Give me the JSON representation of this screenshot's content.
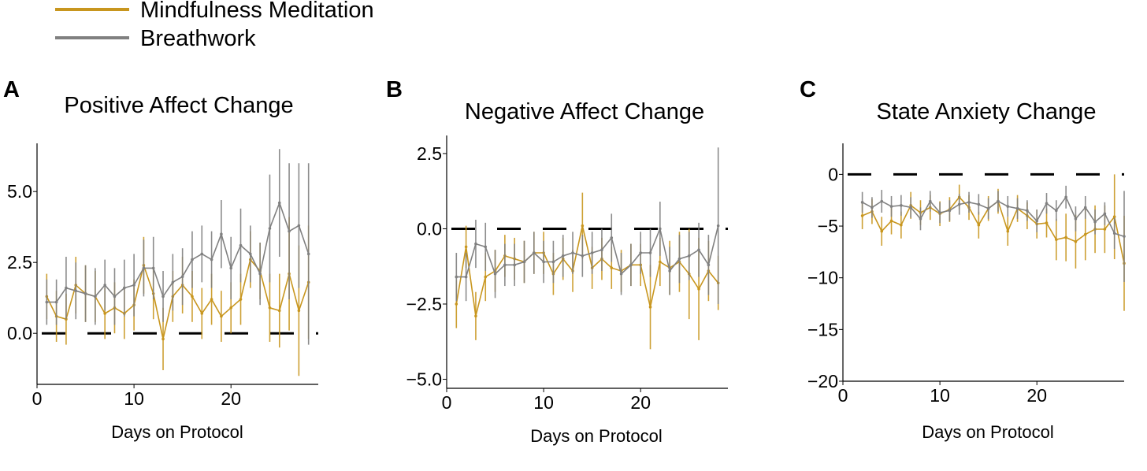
{
  "legend": {
    "entries": [
      {
        "label": "Mindfulness Meditation",
        "color": "#C8961E"
      },
      {
        "label": "Breathwork",
        "color": "#808080"
      }
    ]
  },
  "colors": {
    "mindfulness": "#C8961E",
    "breathwork": "#808080",
    "zero_line": "#000000",
    "axis": "#000000"
  },
  "chart_data": [
    {
      "type": "line",
      "panel": "A",
      "title": "Positive Affect Change",
      "xlabel": "Days on Protocol",
      "ylabel": "",
      "xlim": [
        0,
        29
      ],
      "ylim": [
        -1.8,
        6.7
      ],
      "xticks": [
        0,
        10,
        20
      ],
      "xtick_labels": [
        "0",
        "10",
        "20"
      ],
      "yticks": [
        0,
        2.5,
        5
      ],
      "ytick_labels": [
        "0.0",
        "2.5",
        "5.0"
      ],
      "zero_line": true,
      "grid": false,
      "series": [
        {
          "name": "Mindfulness Meditation",
          "x": [
            1,
            2,
            3,
            4,
            5,
            6,
            7,
            8,
            9,
            10,
            11,
            12,
            13,
            14,
            15,
            16,
            17,
            18,
            19,
            20,
            21,
            22,
            23,
            24,
            25,
            26,
            27,
            28
          ],
          "y": [
            1.3,
            0.6,
            0.5,
            1.7,
            1.4,
            1.3,
            0.7,
            0.9,
            0.7,
            1.0,
            2.4,
            1.4,
            -0.2,
            1.3,
            1.7,
            1.3,
            0.7,
            1.2,
            0.6,
            0.9,
            1.2,
            2.6,
            2.2,
            0.9,
            0.8,
            2.1,
            0.8,
            1.8
          ],
          "err": [
            0.8,
            0.9,
            0.9,
            1.0,
            1.0,
            0.9,
            0.9,
            0.9,
            0.9,
            0.9,
            1.0,
            0.9,
            1.1,
            0.9,
            1.0,
            0.9,
            0.9,
            0.9,
            0.9,
            0.9,
            0.9,
            1.0,
            1.0,
            1.2,
            1.3,
            2.0,
            2.3,
            2.0
          ]
        },
        {
          "name": "Breathwork",
          "x": [
            1,
            2,
            3,
            4,
            5,
            6,
            7,
            8,
            9,
            10,
            11,
            12,
            13,
            14,
            15,
            16,
            17,
            18,
            19,
            20,
            21,
            22,
            23,
            24,
            25,
            26,
            27,
            28
          ],
          "y": [
            1.1,
            1.1,
            1.6,
            1.5,
            1.4,
            1.3,
            1.7,
            1.3,
            1.6,
            1.7,
            2.3,
            2.3,
            1.3,
            1.8,
            2.0,
            2.6,
            2.8,
            2.6,
            3.5,
            2.3,
            3.1,
            2.8,
            2.1,
            3.7,
            4.6,
            3.6,
            3.8,
            2.8
          ],
          "err": [
            0.8,
            0.8,
            1.1,
            1.0,
            1.0,
            1.0,
            0.9,
            1.0,
            1.0,
            1.1,
            1.0,
            1.1,
            0.9,
            1.0,
            1.0,
            1.0,
            1.0,
            1.0,
            1.2,
            1.1,
            1.3,
            1.0,
            1.1,
            1.9,
            1.9,
            2.4,
            2.2,
            3.2
          ]
        }
      ]
    },
    {
      "type": "line",
      "panel": "B",
      "title": "Negative Affect Change",
      "xlabel": "Days on Protocol",
      "ylabel": "",
      "xlim": [
        0,
        29
      ],
      "ylim": [
        -5.3,
        3.1
      ],
      "xticks": [
        0,
        10,
        20
      ],
      "xtick_labels": [
        "0",
        "10",
        "20"
      ],
      "yticks": [
        -5,
        -2.5,
        0,
        2.5
      ],
      "ytick_labels": [
        "−5.0",
        "−2.5",
        "0.0",
        "2.5"
      ],
      "zero_line": true,
      "grid": false,
      "series": [
        {
          "name": "Mindfulness Meditation",
          "x": [
            1,
            2,
            3,
            4,
            5,
            6,
            7,
            8,
            9,
            10,
            11,
            12,
            13,
            14,
            15,
            16,
            17,
            18,
            19,
            20,
            21,
            22,
            23,
            24,
            25,
            26,
            27,
            28
          ],
          "y": [
            -2.5,
            -0.6,
            -2.9,
            -1.6,
            -1.4,
            -0.9,
            -1.0,
            -1.1,
            -0.8,
            -0.8,
            -1.5,
            -1.0,
            -1.4,
            0.1,
            -1.3,
            -1.0,
            -1.3,
            -1.4,
            -1.2,
            -1.2,
            -2.6,
            -1.1,
            -1.3,
            -1.1,
            -1.5,
            -2.0,
            -1.4,
            -1.8
          ],
          "err": [
            0.8,
            0.7,
            0.8,
            0.8,
            0.7,
            0.7,
            0.7,
            0.7,
            0.7,
            0.7,
            0.7,
            0.7,
            0.7,
            1.1,
            0.7,
            0.7,
            0.7,
            0.7,
            0.7,
            0.7,
            1.4,
            0.8,
            0.9,
            1.0,
            1.5,
            1.7,
            1.0,
            0.9
          ]
        },
        {
          "name": "Breathwork",
          "x": [
            1,
            2,
            3,
            4,
            5,
            6,
            7,
            8,
            9,
            10,
            11,
            12,
            13,
            14,
            15,
            16,
            17,
            18,
            19,
            20,
            21,
            22,
            23,
            24,
            25,
            26,
            27,
            28
          ],
          "y": [
            -1.6,
            -1.6,
            -0.5,
            -0.6,
            -1.5,
            -1.2,
            -1.2,
            -1.1,
            -0.8,
            -1.1,
            -1.1,
            -0.9,
            -0.8,
            -0.9,
            -0.8,
            -0.7,
            -0.3,
            -1.5,
            -1.2,
            -0.8,
            -0.8,
            0.0,
            -1.4,
            -1.0,
            -0.9,
            -0.7,
            -1.2,
            0.1
          ],
          "err": [
            0.8,
            0.8,
            0.8,
            0.8,
            0.8,
            0.7,
            0.7,
            0.7,
            0.7,
            0.7,
            0.7,
            0.7,
            0.7,
            0.7,
            0.7,
            0.7,
            0.8,
            0.7,
            0.7,
            0.7,
            0.8,
            0.9,
            0.8,
            0.8,
            0.8,
            0.9,
            1.0,
            2.6
          ]
        }
      ]
    },
    {
      "type": "line",
      "panel": "C",
      "title": "State Anxiety Change",
      "xlabel": "Days on Protocol",
      "ylabel": "",
      "xlim": [
        0,
        29
      ],
      "ylim": [
        -20,
        3
      ],
      "xticks": [
        0,
        10,
        20
      ],
      "xtick_labels": [
        "0",
        "10",
        "20"
      ],
      "yticks": [
        -20,
        -15,
        -10,
        -5,
        0
      ],
      "ytick_labels": [
        "−20",
        "−15",
        "−10",
        "−5",
        "0"
      ],
      "zero_line": true,
      "grid": false,
      "series": [
        {
          "name": "Mindfulness Meditation",
          "x": [
            2,
            3,
            4,
            5,
            6,
            7,
            8,
            9,
            10,
            11,
            12,
            13,
            14,
            15,
            16,
            17,
            18,
            19,
            20,
            21,
            22,
            23,
            24,
            25,
            26,
            27,
            28,
            29
          ],
          "y": [
            -4.0,
            -3.6,
            -5.5,
            -4.5,
            -4.9,
            -3.0,
            -3.7,
            -3.2,
            -3.8,
            -3.4,
            -2.2,
            -3.2,
            -4.9,
            -3.3,
            -2.6,
            -5.5,
            -3.3,
            -4.0,
            -4.8,
            -4.7,
            -6.3,
            -6.1,
            -6.5,
            -5.8,
            -5.3,
            -5.3,
            -4.1,
            -8.6
          ],
          "err": [
            1.3,
            1.2,
            1.4,
            1.3,
            1.3,
            1.3,
            1.2,
            1.2,
            1.2,
            1.2,
            1.2,
            1.2,
            1.3,
            1.2,
            1.2,
            1.4,
            1.3,
            1.3,
            1.4,
            1.4,
            2.0,
            2.3,
            2.6,
            2.5,
            2.3,
            2.3,
            4.1,
            4.6
          ]
        },
        {
          "name": "Breathwork",
          "x": [
            2,
            3,
            4,
            5,
            6,
            7,
            8,
            9,
            10,
            11,
            12,
            13,
            14,
            15,
            16,
            17,
            18,
            19,
            20,
            21,
            22,
            23,
            24,
            25,
            26,
            27,
            28,
            29
          ],
          "y": [
            -2.7,
            -3.2,
            -2.6,
            -3.1,
            -3.0,
            -3.2,
            -4.3,
            -2.6,
            -3.7,
            -3.5,
            -2.9,
            -2.7,
            -2.9,
            -3.3,
            -2.6,
            -3.1,
            -3.3,
            -3.5,
            -4.5,
            -2.8,
            -3.5,
            -2.2,
            -4.3,
            -3.2,
            -4.6,
            -3.8,
            -5.7,
            -6.0
          ],
          "err": [
            1.0,
            1.0,
            1.1,
            1.0,
            1.0,
            1.0,
            1.1,
            1.0,
            1.0,
            1.0,
            1.0,
            1.0,
            1.0,
            1.0,
            1.0,
            1.0,
            1.0,
            1.0,
            1.1,
            1.0,
            1.0,
            1.1,
            1.2,
            1.1,
            1.2,
            1.1,
            1.5,
            4.4
          ]
        }
      ]
    }
  ]
}
